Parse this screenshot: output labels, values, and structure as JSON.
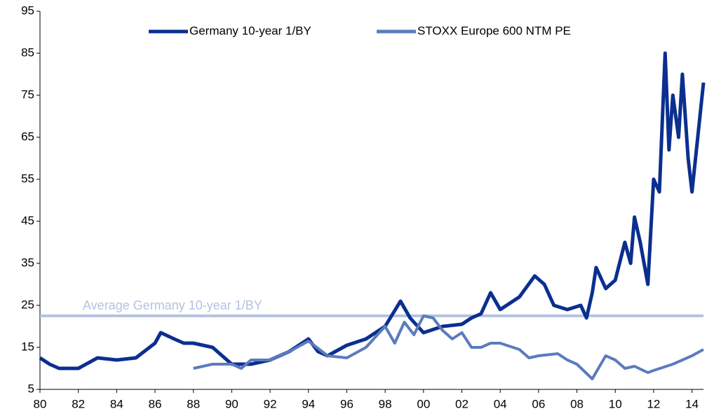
{
  "chart_data": {
    "type": "line",
    "xlim": [
      1980,
      2014.6
    ],
    "xticks": [
      {
        "value": 1980,
        "label": "80"
      },
      {
        "value": 1982,
        "label": "82"
      },
      {
        "value": 1984,
        "label": "84"
      },
      {
        "value": 1986,
        "label": "86"
      },
      {
        "value": 1988,
        "label": "88"
      },
      {
        "value": 1990,
        "label": "90"
      },
      {
        "value": 1992,
        "label": "92"
      },
      {
        "value": 1994,
        "label": "94"
      },
      {
        "value": 1996,
        "label": "96"
      },
      {
        "value": 1998,
        "label": "98"
      },
      {
        "value": 2000,
        "label": "00"
      },
      {
        "value": 2002,
        "label": "02"
      },
      {
        "value": 2004,
        "label": "04"
      },
      {
        "value": 2006,
        "label": "06"
      },
      {
        "value": 2008,
        "label": "08"
      },
      {
        "value": 2010,
        "label": "10"
      },
      {
        "value": 2012,
        "label": "12"
      },
      {
        "value": 2014,
        "label": "14"
      }
    ],
    "ylim": [
      5,
      95
    ],
    "yticks": [
      5,
      15,
      25,
      35,
      45,
      55,
      65,
      75,
      85,
      95
    ],
    "grid": false,
    "legend": "top",
    "series": [
      {
        "name": "Germany 10-year 1/BY",
        "color": "#0b2f8f",
        "x": [
          1980,
          1980.5,
          1981,
          1982,
          1983,
          1984,
          1985,
          1986,
          1986.3,
          1987,
          1987.5,
          1988,
          1989,
          1990,
          1991,
          1992,
          1993,
          1994,
          1994.5,
          1995,
          1996,
          1997,
          1998,
          1998.8,
          1999.3,
          2000,
          2001,
          2002,
          2002.5,
          2003,
          2003.5,
          2004,
          2005,
          2005.8,
          2006.3,
          2006.8,
          2007.5,
          2008.2,
          2008.5,
          2008.8,
          2009,
          2009.5,
          2010,
          2010.5,
          2010.8,
          2011,
          2011.3,
          2011.7,
          2012,
          2012.3,
          2012.6,
          2012.8,
          2013,
          2013.3,
          2013.5,
          2013.8,
          2014,
          2014.3,
          2014.6
        ],
        "values": [
          12.5,
          11,
          10,
          10,
          12.5,
          12,
          12.5,
          16,
          18.5,
          17,
          16,
          16,
          15,
          11,
          11,
          12,
          14,
          17,
          14,
          13,
          15.5,
          17,
          20,
          26,
          22,
          18.5,
          20,
          20.5,
          22,
          23,
          28,
          24,
          27,
          32,
          30,
          25,
          24,
          25,
          22,
          28,
          34,
          29,
          31,
          40,
          35,
          46,
          40,
          30,
          55,
          52,
          85,
          62,
          75,
          65,
          80,
          60,
          52,
          65,
          78
        ]
      },
      {
        "name": "STOXX Europe 600 NTM PE",
        "color": "#5b7bbd",
        "x": [
          1988,
          1989,
          1990,
          1990.5,
          1991,
          1992,
          1993,
          1994,
          1995,
          1996,
          1997,
          1998,
          1998.5,
          1999,
          1999.5,
          2000,
          2000.5,
          2001,
          2001.5,
          2002,
          2002.5,
          2003,
          2003.5,
          2004,
          2005,
          2005.5,
          2006,
          2007,
          2007.5,
          2008,
          2008.8,
          2009.5,
          2010,
          2010.5,
          2011,
          2011.7,
          2012,
          2013,
          2014,
          2014.6
        ],
        "values": [
          10,
          11,
          11,
          10,
          12,
          12,
          14,
          16.5,
          13,
          12.5,
          15,
          20,
          16,
          21,
          18,
          22.5,
          22,
          19,
          17,
          18.5,
          15,
          15,
          16,
          16,
          14.5,
          12.5,
          13,
          13.5,
          12,
          11,
          7.5,
          13,
          12,
          10,
          10.5,
          9,
          9.5,
          11,
          13,
          14.5
        ]
      }
    ],
    "hlines": [
      {
        "value": 22.5,
        "label": "Average Germany 10-year 1/BY",
        "color": "#b4c3e0"
      }
    ]
  }
}
